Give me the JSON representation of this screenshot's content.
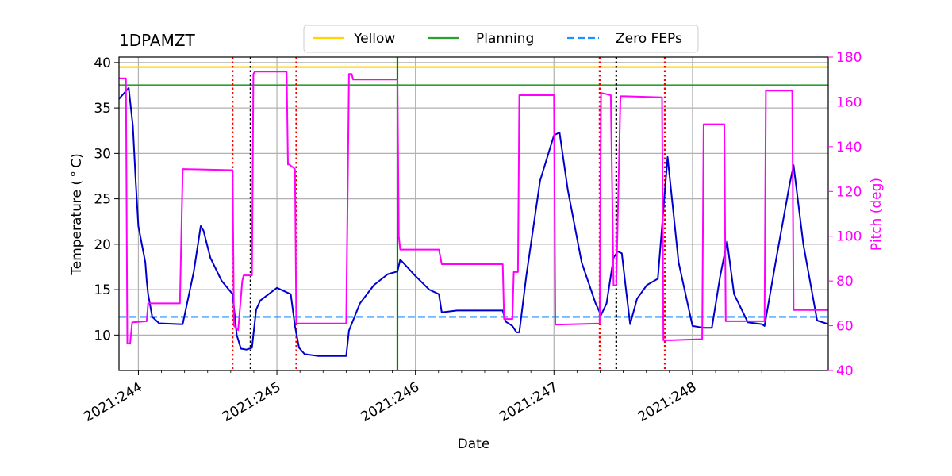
{
  "chart_data": {
    "type": "line",
    "title": "1DPAMZT",
    "xlabel": "Date",
    "ylabel": "Temperature ($^\\circ$C)",
    "ylabel_display": "Temperature ( ° C)",
    "y2label": "Pitch (deg)",
    "xlim": [
      243.86,
      248.98
    ],
    "ylim": [
      6.1,
      40.6
    ],
    "y2lim": [
      40,
      180
    ],
    "x_ticks": [
      244,
      245,
      246,
      247,
      248
    ],
    "x_tick_labels": [
      "2021:244",
      "2021:245",
      "2021:246",
      "2021:247",
      "2021:248"
    ],
    "y_ticks": [
      10,
      15,
      20,
      25,
      30,
      35,
      40
    ],
    "y_tick_labels": [
      "10",
      "15",
      "20",
      "25",
      "30",
      "35",
      "40"
    ],
    "y2_ticks": [
      40,
      60,
      80,
      100,
      120,
      140,
      160,
      180
    ],
    "y2_tick_labels": [
      "40",
      "60",
      "80",
      "100",
      "120",
      "140",
      "160",
      "180"
    ],
    "grid": true,
    "legend_position": "top-center",
    "legend": [
      {
        "label": "Yellow",
        "color": "#ffd700",
        "style": "solid"
      },
      {
        "label": "Planning",
        "color": "#2ca02c",
        "style": "solid"
      },
      {
        "label": "Zero FEPs",
        "color": "#1e90ff",
        "style": "dashed"
      }
    ],
    "hlines": [
      {
        "name": "Yellow",
        "y": 39.5,
        "color": "#ffd700"
      },
      {
        "name": "Planning",
        "y": 37.5,
        "color": "#2ca02c"
      },
      {
        "name": "Zero FEPs",
        "y": 12.0,
        "color": "#1e90ff"
      }
    ],
    "vlines": [
      {
        "x": 244.68,
        "color": "#ff0000",
        "style": "dotted"
      },
      {
        "x": 244.81,
        "color": "#000000",
        "style": "dotted"
      },
      {
        "x": 245.14,
        "color": "#ff0000",
        "style": "dotted"
      },
      {
        "x": 245.87,
        "color": "#008000",
        "style": "solid"
      },
      {
        "x": 247.33,
        "color": "#ff0000",
        "style": "dotted"
      },
      {
        "x": 247.45,
        "color": "#000000",
        "style": "dotted"
      },
      {
        "x": 247.8,
        "color": "#ff0000",
        "style": "dotted"
      }
    ],
    "series": [
      {
        "name": "1DPAMZT",
        "axis": "left",
        "color": "#0000cd",
        "x": [
          243.86,
          243.93,
          243.96,
          243.98,
          244.0,
          244.05,
          244.06,
          244.07,
          244.1,
          244.15,
          244.3,
          244.32,
          244.4,
          244.45,
          244.47,
          244.52,
          244.6,
          244.68,
          244.71,
          244.74,
          244.78,
          244.82,
          244.85,
          244.88,
          245.0,
          245.1,
          245.13,
          245.16,
          245.2,
          245.3,
          245.4,
          245.5,
          245.52,
          245.6,
          245.7,
          245.8,
          245.87,
          245.89,
          245.91,
          246.0,
          246.1,
          246.17,
          246.19,
          246.3,
          246.5,
          246.63,
          246.65,
          246.7,
          246.73,
          246.75,
          246.8,
          246.9,
          247.0,
          247.04,
          247.1,
          247.2,
          247.3,
          247.34,
          247.38,
          247.43,
          247.46,
          247.49,
          247.52,
          247.55,
          247.6,
          247.67,
          247.75,
          247.82,
          247.9,
          248.0,
          248.08,
          248.14,
          248.2,
          248.25,
          248.3,
          248.4,
          248.5,
          248.52,
          248.6,
          248.7,
          248.73,
          248.8,
          248.9,
          248.98
        ],
        "y": [
          36.0,
          37.2,
          33.0,
          27.0,
          22.0,
          18.0,
          16.0,
          14.5,
          12.0,
          11.3,
          11.2,
          11.2,
          17.0,
          22.0,
          21.5,
          18.5,
          16.0,
          14.5,
          10.0,
          8.5,
          8.4,
          8.6,
          12.8,
          13.8,
          15.2,
          14.5,
          11.0,
          8.6,
          7.9,
          7.7,
          7.7,
          7.7,
          10.5,
          13.5,
          15.5,
          16.7,
          17.0,
          18.3,
          18.0,
          16.5,
          15.0,
          14.5,
          12.5,
          12.7,
          12.7,
          12.7,
          11.5,
          11.0,
          10.3,
          10.3,
          16.5,
          27.0,
          32.0,
          32.3,
          26.0,
          18.0,
          13.5,
          12.2,
          13.5,
          18.5,
          19.2,
          19.0,
          15.0,
          11.2,
          14.0,
          15.5,
          16.2,
          29.6,
          18.0,
          11.0,
          10.8,
          10.8,
          16.5,
          20.3,
          14.5,
          11.4,
          11.2,
          11.0,
          18.0,
          26.5,
          28.7,
          20.0,
          11.6,
          11.2
        ]
      },
      {
        "name": "Pitch",
        "axis": "right",
        "color": "#ff00ff",
        "x": [
          243.86,
          243.91,
          243.92,
          243.94,
          243.955,
          243.96,
          244.06,
          244.07,
          244.3,
          244.32,
          244.68,
          244.69,
          244.72,
          244.75,
          244.76,
          244.82,
          244.83,
          244.84,
          245.07,
          245.08,
          245.09,
          245.13,
          245.14,
          245.5,
          245.52,
          245.54,
          245.55,
          245.87,
          245.88,
          245.89,
          246.17,
          246.19,
          246.63,
          246.64,
          246.7,
          246.71,
          246.74,
          246.75,
          247.0,
          247.01,
          247.33,
          247.34,
          247.41,
          247.43,
          247.45,
          247.48,
          247.49,
          247.51,
          247.78,
          247.79,
          247.84,
          248.07,
          248.08,
          248.23,
          248.24,
          248.52,
          248.53,
          248.72,
          248.73,
          248.98
        ],
        "y": [
          170.5,
          170.5,
          52.0,
          52.0,
          61.5,
          61.5,
          62.0,
          70.0,
          70.0,
          130.0,
          129.5,
          60.0,
          58.0,
          80.0,
          82.5,
          82.5,
          172.5,
          173.5,
          173.5,
          132.0,
          132.0,
          130.0,
          61.0,
          61.0,
          172.5,
          172.5,
          170.0,
          170.0,
          100.0,
          94.0,
          94.0,
          87.5,
          87.5,
          63.0,
          63.0,
          84.0,
          84.0,
          163.0,
          163.0,
          60.5,
          61.0,
          164.0,
          163.0,
          78.0,
          78.0,
          162.5,
          162.5,
          162.5,
          162.0,
          53.5,
          53.5,
          54.0,
          150.0,
          150.0,
          62.0,
          62.0,
          165.0,
          165.0,
          67.0,
          67.0
        ]
      }
    ]
  }
}
